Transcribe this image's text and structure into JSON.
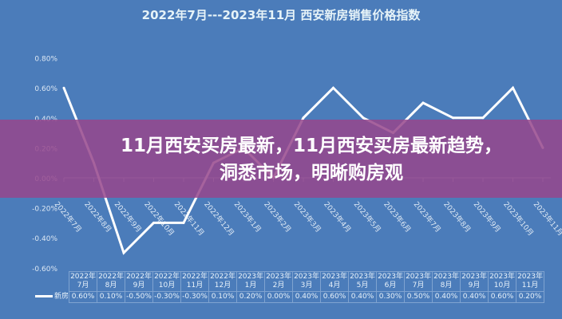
{
  "banner": {
    "line1": "11月西安买房最新，11月西安买房最新趋势，",
    "line2": "洞悉市场，明晰购房观"
  },
  "chart_data": {
    "type": "line",
    "title": "2022年7月---2023年11月 西安新房销售价格指数",
    "categories": [
      "2022年7月",
      "2022年8月",
      "2022年9月",
      "2022年10月",
      "2022年11月",
      "2022年12月",
      "2023年1月",
      "2023年2月",
      "2023年3月",
      "2023年4月",
      "2023年5月",
      "2023年6月",
      "2023年7月",
      "2023年8月",
      "2023年9月",
      "2023年10月",
      "2023年11月"
    ],
    "series": [
      {
        "name": "新房",
        "values": [
          0.6,
          0.1,
          -0.5,
          -0.3,
          -0.3,
          0.1,
          0.2,
          0.0,
          0.4,
          0.6,
          0.4,
          0.3,
          0.5,
          0.4,
          0.4,
          0.6,
          0.2
        ],
        "labels": [
          "0.60%",
          "0.10%",
          "-0.50%",
          "-0.30%",
          "-0.30%",
          "0.10%",
          "0.20%",
          "0.00%",
          "0.40%",
          "0.60%",
          "0.40%",
          "0.30%",
          "0.50%",
          "0.40%",
          "0.40%",
          "0.60%",
          "0.20%"
        ]
      }
    ],
    "yticks": [
      "0.80%",
      "0.60%",
      "0.40%",
      "0.20%",
      "0.00%",
      "-0.20%",
      "-0.40%",
      "-0.60%"
    ],
    "ylim": [
      -0.6,
      0.8
    ],
    "line_color": "#ffffff",
    "background": "#4b7cba",
    "grid": false,
    "legend": "bottom-left data table"
  }
}
